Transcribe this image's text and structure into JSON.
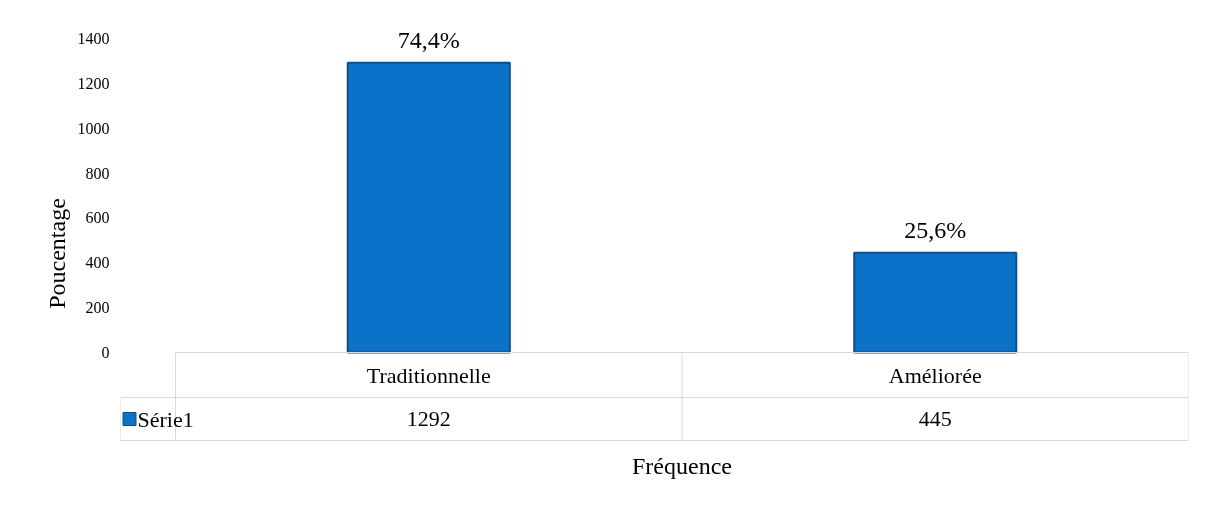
{
  "chart_data": {
    "type": "bar",
    "categories": [
      "Traditionnelle",
      "Améliorée"
    ],
    "series": [
      {
        "name": "Série1",
        "color": "#0b72c9",
        "values": [
          1292,
          445
        ],
        "value_labels": [
          "1292",
          "445"
        ]
      }
    ],
    "ylabel": "Poucentage",
    "xlabel": "Fréquence",
    "ylim": [
      0,
      1400
    ],
    "yticks": [
      0,
      200,
      400,
      600,
      800,
      1000,
      1200,
      1400
    ],
    "annotations": [
      {
        "text": "74,4%",
        "x": "Traditionnelle",
        "y": 1292
      },
      {
        "text": "25,6%",
        "x": "Améliorée",
        "y": 445
      }
    ],
    "grid": false,
    "legend": "bottom"
  }
}
